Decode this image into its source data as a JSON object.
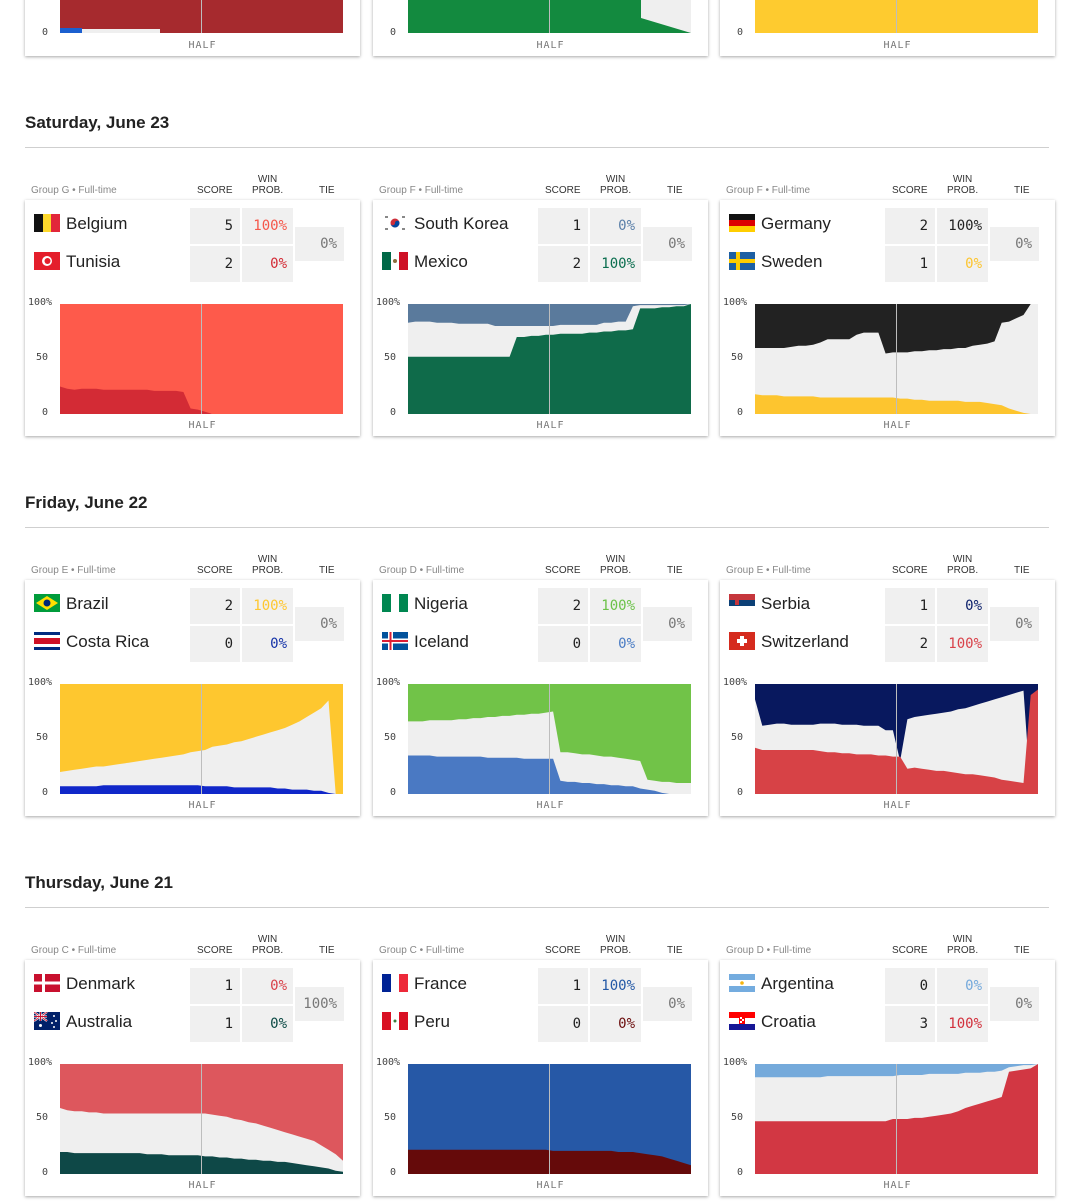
{
  "top_row": {
    "half_label": "HALF",
    "zero_label": "0",
    "colors": [
      "#a62a2e",
      "#138a3f",
      "#fecb2f"
    ],
    "minor_color": "#1b5fcf"
  },
  "labels": {
    "score": "SCORE",
    "win_line1": "WIN",
    "win_line2": "PROB.",
    "tie": "TIE",
    "y100": "100%",
    "y50": "50",
    "y0": "0",
    "half": "HALF"
  },
  "days": [
    {
      "title": "Saturday, June 23",
      "matches": [
        {
          "group": "Group G • Full-time",
          "tie": "0%",
          "team1": {
            "name": "Belgium",
            "flag": "belgium-flag",
            "score": "5",
            "prob": "100%",
            "color": "#f5574a"
          },
          "team2": {
            "name": "Tunisia",
            "flag": "tunisia-flag",
            "score": "2",
            "prob": "0%",
            "color": "#d32b35"
          },
          "chart": {
            "t1": "#fe5a4b",
            "t2": "#d32b35",
            "top": [
              25,
              23,
              22,
              23,
              23,
              23,
              22,
              22,
              22,
              22,
              22,
              22,
              22,
              21,
              21,
              21,
              21,
              20,
              5,
              4,
              2,
              0,
              0,
              0,
              0,
              0,
              0,
              0,
              0,
              0,
              0,
              0,
              0,
              0,
              0,
              0,
              0,
              0,
              0,
              0
            ],
            "bottom": [
              7,
              7,
              6,
              6,
              6,
              6,
              6,
              3,
              1,
              4,
              4,
              4,
              4,
              4,
              4,
              4,
              4,
              2,
              2,
              1,
              1,
              0,
              0,
              0,
              0,
              0,
              0,
              0,
              0,
              0,
              0,
              0,
              0,
              0,
              0,
              0,
              0,
              0,
              0,
              0
            ]
          }
        },
        {
          "group": "Group F • Full-time",
          "tie": "0%",
          "team1": {
            "name": "South Korea",
            "flag": "south-korea-flag",
            "score": "1",
            "prob": "0%",
            "color": "#5a7fa8"
          },
          "team2": {
            "name": "Mexico",
            "flag": "mexico-flag",
            "score": "2",
            "prob": "100%",
            "color": "#0b6e4f"
          },
          "chart": {
            "t1": "#5a7a9c",
            "t2": "#0f6b4a",
            "top": [
              52,
              52,
              52,
              52,
              52,
              52,
              52,
              52,
              52,
              52,
              52,
              52,
              52,
              52,
              52,
              70,
              70,
              71,
              71,
              72,
              72,
              73,
              73,
              73,
              73,
              74,
              74,
              75,
              75,
              76,
              76,
              77,
              96,
              96,
              96,
              97,
              97,
              98,
              98,
              100
            ],
            "bottom": [
              83,
              84,
              84,
              84,
              83,
              83,
              83,
              82,
              82,
              82,
              82,
              82,
              80,
              80,
              80,
              80,
              80,
              80,
              80,
              80,
              80,
              81,
              81,
              81,
              81,
              81,
              81,
              83,
              83,
              84,
              84,
              98,
              99,
              99,
              99,
              99,
              99,
              99,
              99,
              100
            ]
          }
        },
        {
          "group": "Group F • Full-time",
          "tie": "0%",
          "team1": {
            "name": "Germany",
            "flag": "germany-flag",
            "score": "2",
            "prob": "100%",
            "color": "#222222"
          },
          "team2": {
            "name": "Sweden",
            "flag": "sweden-flag",
            "score": "1",
            "prob": "0%",
            "color": "#fdc52f"
          },
          "chart": {
            "t1": "#222222",
            "t2": "#fdc52f",
            "top": [
              18,
              17,
              17,
              17,
              16,
              16,
              16,
              16,
              16,
              15,
              15,
              15,
              15,
              15,
              15,
              15,
              15,
              15,
              15,
              15,
              14,
              14,
              13,
              13,
              12,
              12,
              12,
              12,
              12,
              11,
              11,
              11,
              10,
              9,
              8,
              5,
              3,
              1,
              0,
              0
            ],
            "bottom": [
              60,
              60,
              60,
              60,
              60,
              61,
              62,
              62,
              63,
              65,
              68,
              68,
              68,
              68,
              72,
              74,
              74,
              74,
              55,
              56,
              56,
              56,
              57,
              57,
              58,
              58,
              59,
              59,
              60,
              60,
              62,
              63,
              64,
              66,
              83,
              84,
              87,
              90,
              100,
              100
            ]
          }
        }
      ]
    },
    {
      "title": "Friday, June 22",
      "matches": [
        {
          "group": "Group E • Full-time",
          "tie": "0%",
          "team1": {
            "name": "Brazil",
            "flag": "brazil-flag",
            "score": "2",
            "prob": "100%",
            "color": "#fec730"
          },
          "team2": {
            "name": "Costa Rica",
            "flag": "costa-rica-flag",
            "score": "0",
            "prob": "0%",
            "color": "#1432a8"
          },
          "chart": {
            "t1": "#fec72f",
            "t2": "#1027c9",
            "top": [
              7,
              7,
              7,
              7,
              7,
              7,
              8,
              8,
              8,
              8,
              8,
              8,
              8,
              8,
              8,
              8,
              8,
              8,
              8,
              8,
              7,
              7,
              7,
              7,
              6,
              6,
              6,
              6,
              6,
              6,
              5,
              5,
              4,
              4,
              4,
              3,
              3,
              1,
              0,
              0
            ],
            "bottom": [
              20,
              21,
              22,
              23,
              24,
              25,
              25,
              26,
              27,
              28,
              29,
              30,
              31,
              32,
              33,
              34,
              35,
              36,
              38,
              39,
              40,
              43,
              44,
              45,
              47,
              48,
              50,
              52,
              54,
              56,
              58,
              60,
              63,
              66,
              70,
              74,
              78,
              85,
              0,
              0
            ]
          }
        },
        {
          "group": "Group D • Full-time",
          "tie": "0%",
          "team1": {
            "name": "Nigeria",
            "flag": "nigeria-flag",
            "score": "2",
            "prob": "100%",
            "color": "#6cc24a"
          },
          "team2": {
            "name": "Iceland",
            "flag": "iceland-flag",
            "score": "0",
            "prob": "0%",
            "color": "#4a7cc4"
          },
          "chart": {
            "t1": "#71c348",
            "t2": "#4a79c3",
            "top": [
              35,
              35,
              35,
              35,
              34,
              34,
              34,
              34,
              34,
              34,
              34,
              33,
              33,
              33,
              33,
              33,
              32,
              32,
              32,
              32,
              32,
              12,
              11,
              11,
              10,
              10,
              9,
              9,
              8,
              8,
              7,
              7,
              5,
              4,
              3,
              1,
              0,
              0,
              0,
              0
            ],
            "bottom": [
              66,
              66,
              66,
              67,
              67,
              67,
              67,
              68,
              68,
              69,
              69,
              70,
              70,
              71,
              71,
              72,
              72,
              73,
              73,
              74,
              75,
              38,
              38,
              37,
              36,
              36,
              35,
              34,
              34,
              33,
              32,
              31,
              30,
              13,
              12,
              11,
              11,
              10,
              10,
              10
            ]
          }
        },
        {
          "group": "Group E • Full-time",
          "tie": "0%",
          "team1": {
            "name": "Serbia",
            "flag": "serbia-flag",
            "score": "1",
            "prob": "0%",
            "color": "#0b1f6b"
          },
          "team2": {
            "name": "Switzerland",
            "flag": "switzerland-flag",
            "score": "2",
            "prob": "100%",
            "color": "#d9424a"
          },
          "chart": {
            "t1": "#08185e",
            "t2": "#d74246",
            "top": [
              42,
              40,
              40,
              40,
              40,
              40,
              40,
              40,
              40,
              39,
              38,
              38,
              37,
              37,
              36,
              36,
              36,
              35,
              35,
              34,
              34,
              23,
              24,
              23,
              22,
              21,
              21,
              20,
              19,
              18,
              18,
              17,
              16,
              15,
              13,
              12,
              11,
              10,
              90,
              95
            ],
            "bottom": [
              86,
              62,
              63,
              64,
              64,
              63,
              63,
              63,
              63,
              64,
              64,
              64,
              63,
              63,
              63,
              62,
              62,
              62,
              58,
              58,
              30,
              68,
              70,
              71,
              72,
              73,
              74,
              75,
              77,
              78,
              80,
              82,
              84,
              86,
              88,
              90,
              92,
              94,
              0,
              0
            ]
          }
        }
      ]
    },
    {
      "title": "Thursday, June 21",
      "matches": [
        {
          "group": "Group C • Full-time",
          "tie": "100%",
          "team1": {
            "name": "Denmark",
            "flag": "denmark-flag",
            "score": "1",
            "prob": "0%",
            "color": "#d9424a"
          },
          "team2": {
            "name": "Australia",
            "flag": "australia-flag",
            "score": "1",
            "prob": "0%",
            "color": "#0b4a45"
          },
          "chart": {
            "t1": "#dd575d",
            "t2": "#0e4847",
            "top": [
              20,
              20,
              19,
              19,
              19,
              19,
              19,
              19,
              19,
              19,
              19,
              19,
              18,
              18,
              18,
              17,
              17,
              17,
              17,
              17,
              16,
              16,
              15,
              15,
              14,
              14,
              13,
              13,
              12,
              12,
              11,
              11,
              10,
              9,
              8,
              7,
              6,
              5,
              3,
              2
            ],
            "bottom": [
              60,
              58,
              57,
              57,
              56,
              56,
              55,
              55,
              55,
              55,
              55,
              55,
              55,
              55,
              55,
              55,
              55,
              55,
              55,
              55,
              55,
              54,
              53,
              52,
              50,
              49,
              47,
              46,
              44,
              42,
              40,
              38,
              36,
              34,
              32,
              30,
              26,
              22,
              18,
              12
            ]
          }
        },
        {
          "group": "Group C • Full-time",
          "tie": "0%",
          "team1": {
            "name": "France",
            "flag": "france-flag",
            "score": "1",
            "prob": "100%",
            "color": "#2459a6"
          },
          "team2": {
            "name": "Peru",
            "flag": "peru-flag",
            "score": "0",
            "prob": "0%",
            "color": "#6b0d0d"
          },
          "chart": {
            "t1": "#2658a6",
            "t2": "#650a0a",
            "top": [
              22,
              22,
              22,
              22,
              22,
              22,
              22,
              22,
              22,
              22,
              22,
              22,
              22,
              22,
              22,
              22,
              22,
              22,
              22,
              22,
              21,
              21,
              21,
              21,
              21,
              21,
              21,
              21,
              21,
              20,
              20,
              20,
              19,
              18,
              17,
              16,
              14,
              12,
              10,
              8
            ],
            "bottom": [
              0,
              0,
              0,
              0,
              0,
              0,
              0,
              0,
              0,
              0,
              0,
              0,
              0,
              0,
              0,
              0,
              0,
              0,
              0,
              0,
              0,
              0,
              0,
              0,
              0,
              0,
              0,
              0,
              0,
              0,
              0,
              0,
              0,
              0,
              0,
              0,
              0,
              0,
              0,
              0
            ]
          }
        },
        {
          "group": "Group D • Full-time",
          "tie": "0%",
          "team1": {
            "name": "Argentina",
            "flag": "argentina-flag",
            "score": "0",
            "prob": "0%",
            "color": "#74a9dc"
          },
          "team2": {
            "name": "Croatia",
            "flag": "croatia-flag",
            "score": "3",
            "prob": "100%",
            "color": "#d2303c"
          },
          "chart": {
            "t1": "#75aadb",
            "t2": "#d23743",
            "top": [
              48,
              48,
              48,
              48,
              48,
              48,
              48,
              48,
              48,
              48,
              48,
              48,
              48,
              48,
              48,
              48,
              48,
              48,
              48,
              50,
              50,
              50,
              51,
              51,
              52,
              53,
              54,
              55,
              57,
              60,
              62,
              64,
              66,
              68,
              70,
              93,
              94,
              95,
              96,
              100
            ],
            "bottom": [
              88,
              88,
              88,
              88,
              88,
              88,
              88,
              88,
              88,
              88,
              89,
              89,
              89,
              89,
              89,
              89,
              89,
              89,
              89,
              89,
              90,
              90,
              90,
              90,
              91,
              91,
              91,
              91,
              91,
              92,
              92,
              92,
              93,
              93,
              94,
              97,
              98,
              99,
              99,
              100
            ]
          }
        }
      ]
    }
  ]
}
